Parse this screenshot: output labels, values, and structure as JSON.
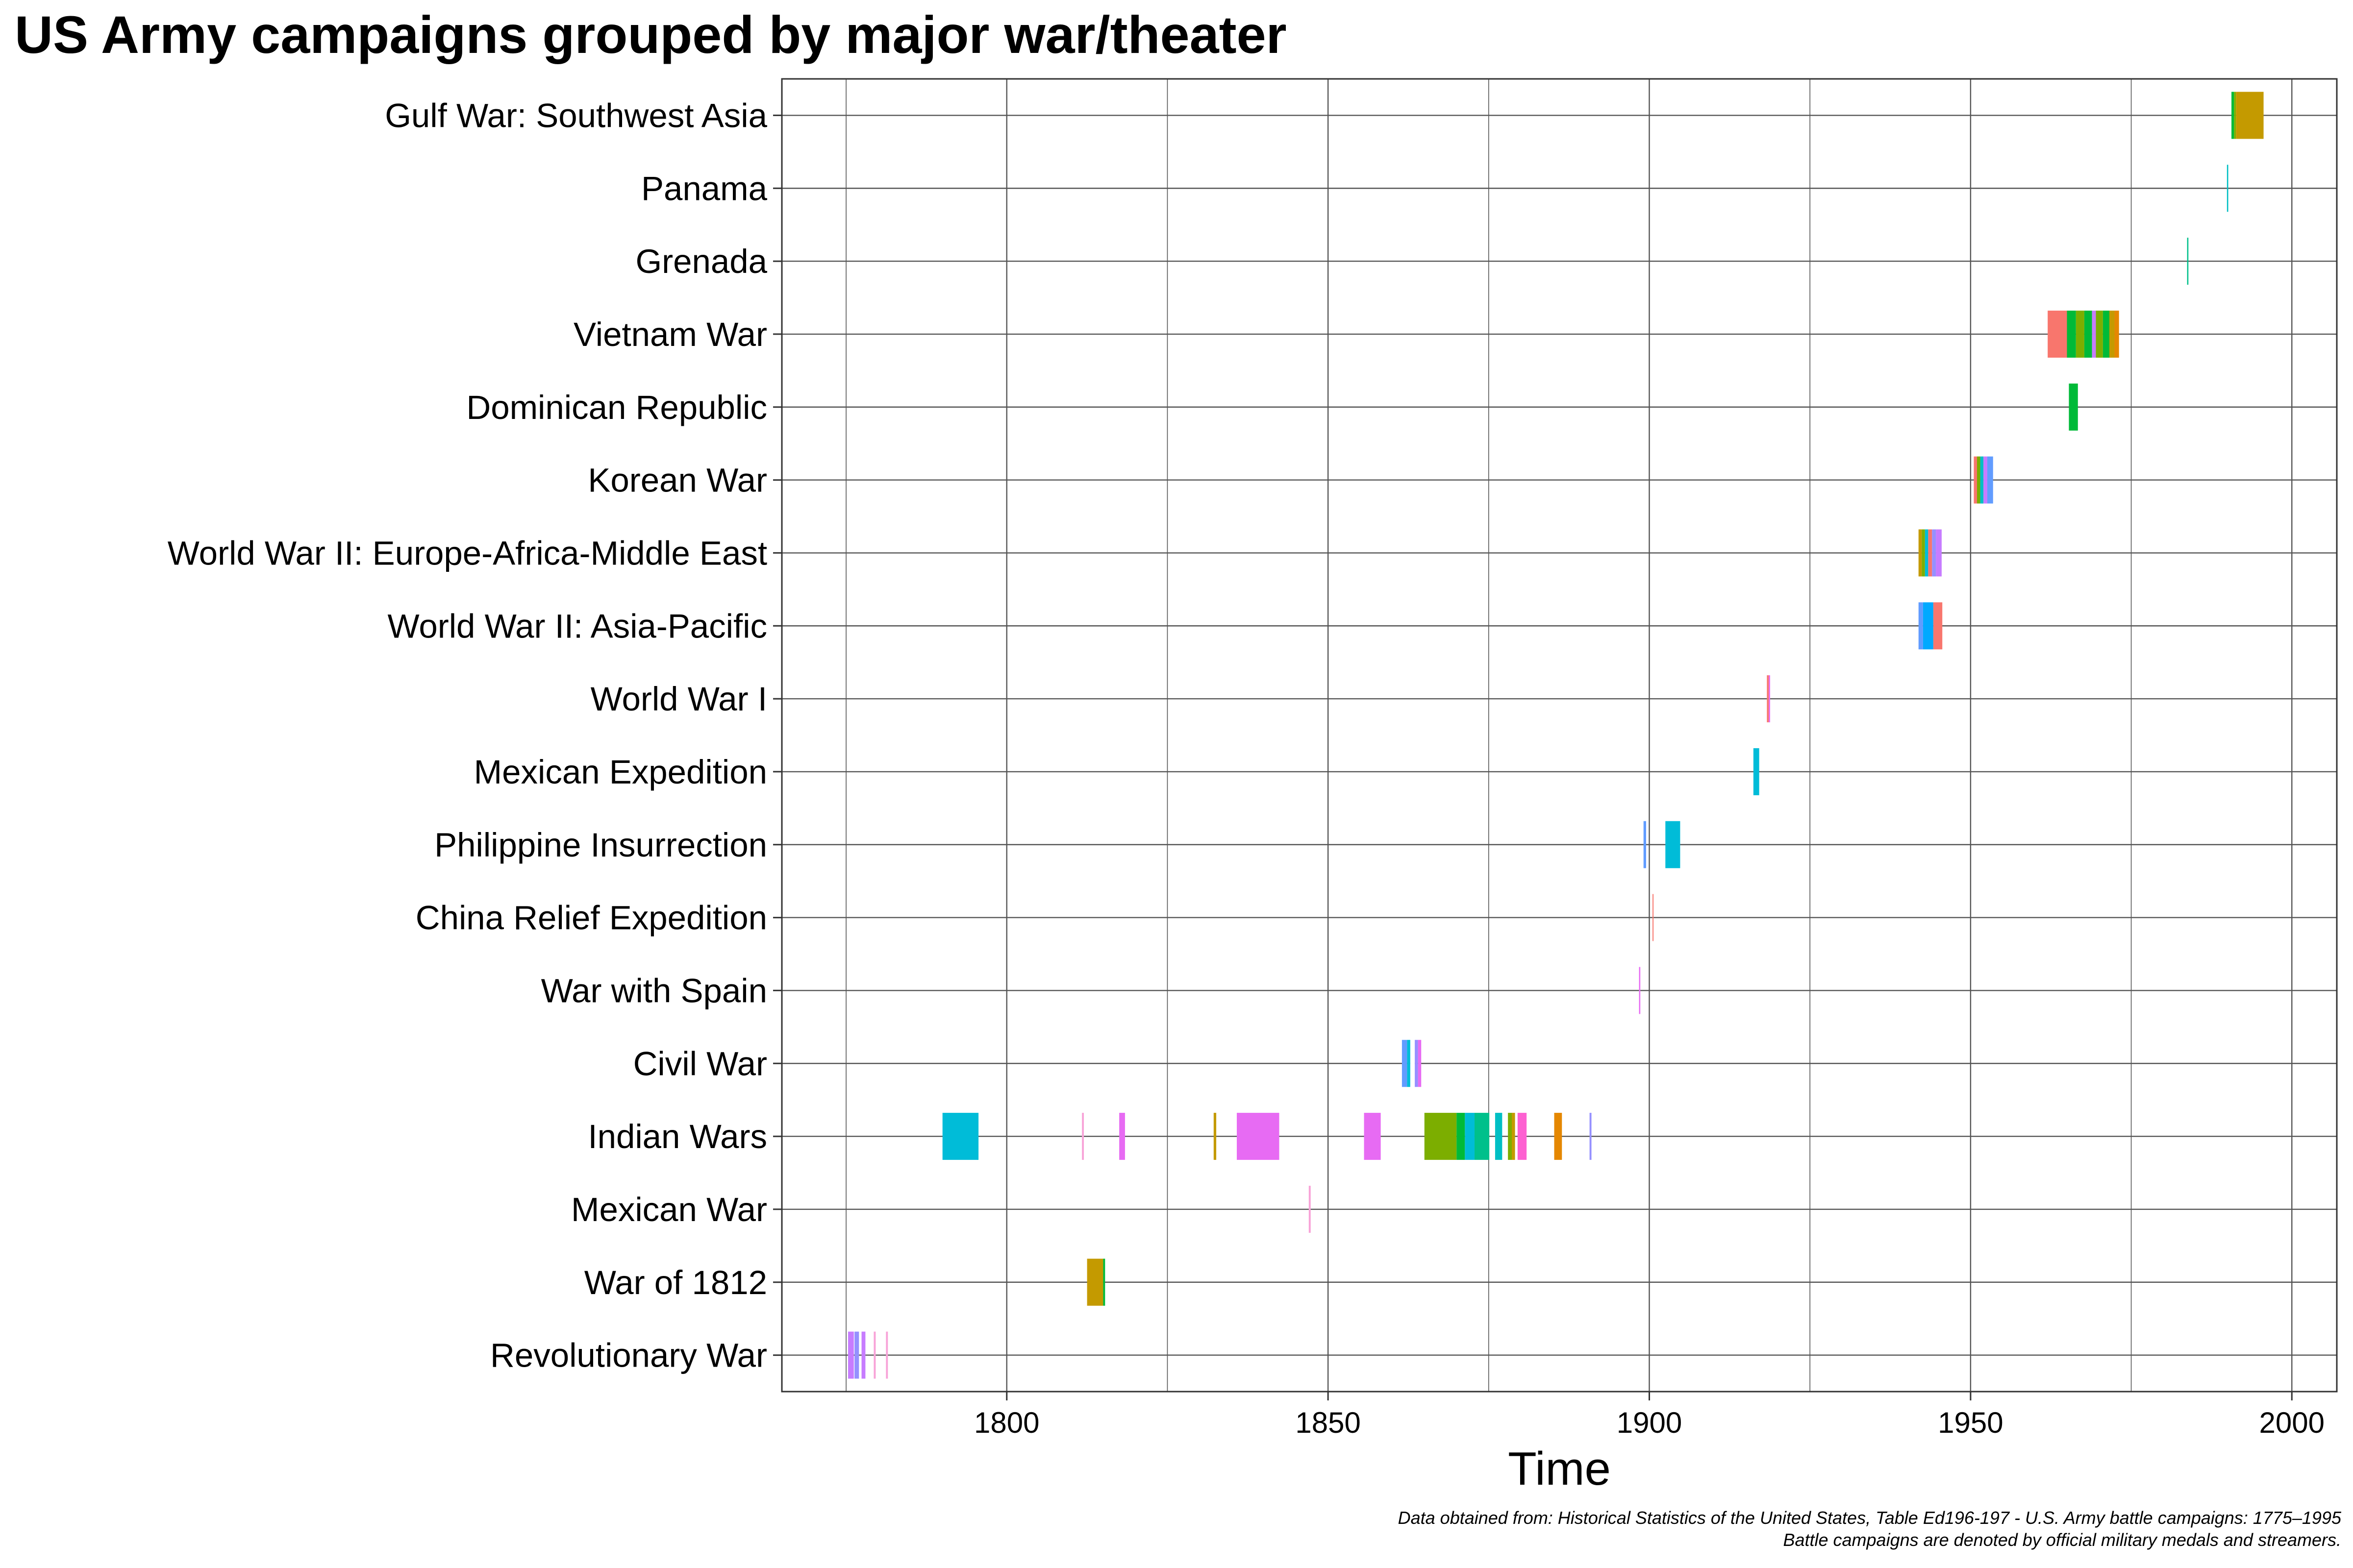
{
  "chart_data": {
    "type": "bar",
    "orientation": "horizontal-timeline",
    "title": "US Army campaigns grouped by major war/theater",
    "xlabel": "Time",
    "ylabel": "",
    "xlim": [
      1765,
      2007
    ],
    "xticks": [
      1800,
      1850,
      1900,
      1950,
      2000
    ],
    "grid": true,
    "legend": "none",
    "categories": [
      "Revolutionary War",
      "War of 1812",
      "Mexican War",
      "Indian Wars",
      "Civil War",
      "War with Spain",
      "China Relief Expedition",
      "Philippine Insurrection",
      "Mexican Expedition",
      "World War I",
      "World War II: Asia-Pacific",
      "World War II: Europe-Africa-Middle East",
      "Korean War",
      "Dominican Republic",
      "Vietnam War",
      "Grenada",
      "Panama",
      "Gulf War: Southwest Asia"
    ],
    "campaigns": [
      {
        "category": "Revolutionary War",
        "start": 1775.3,
        "end": 1776.2,
        "color": "#c77cff"
      },
      {
        "category": "Revolutionary War",
        "start": 1776.3,
        "end": 1777.0,
        "color": "#9590ff"
      },
      {
        "category": "Revolutionary War",
        "start": 1777.4,
        "end": 1778.0,
        "color": "#c77cff"
      },
      {
        "category": "Revolutionary War",
        "start": 1779.3,
        "end": 1779.6,
        "color": "#f8a3d8"
      },
      {
        "category": "Revolutionary War",
        "start": 1781.2,
        "end": 1781.5,
        "color": "#f8a3d8"
      },
      {
        "category": "War of 1812",
        "start": 1812.5,
        "end": 1815.0,
        "color": "#c49a00"
      },
      {
        "category": "War of 1812",
        "start": 1815.0,
        "end": 1815.3,
        "color": "#00ba38"
      },
      {
        "category": "Mexican War",
        "start": 1847.0,
        "end": 1847.3,
        "color": "#f8a3d8"
      },
      {
        "category": "Indian Wars",
        "start": 1790.0,
        "end": 1795.6,
        "color": "#00bcd8"
      },
      {
        "category": "Indian Wars",
        "start": 1811.7,
        "end": 1812.0,
        "color": "#f8a3d8"
      },
      {
        "category": "Indian Wars",
        "start": 1817.5,
        "end": 1818.4,
        "color": "#e76bf3"
      },
      {
        "category": "Indian Wars",
        "start": 1832.2,
        "end": 1832.6,
        "color": "#c49a00"
      },
      {
        "category": "Indian Wars",
        "start": 1835.8,
        "end": 1842.4,
        "color": "#e76bf3"
      },
      {
        "category": "Indian Wars",
        "start": 1855.6,
        "end": 1858.2,
        "color": "#e76bf3"
      },
      {
        "category": "Indian Wars",
        "start": 1865.0,
        "end": 1870.0,
        "color": "#7cae00"
      },
      {
        "category": "Indian Wars",
        "start": 1870.0,
        "end": 1871.3,
        "color": "#00ba38"
      },
      {
        "category": "Indian Wars",
        "start": 1871.3,
        "end": 1872.8,
        "color": "#00bcd8"
      },
      {
        "category": "Indian Wars",
        "start": 1872.8,
        "end": 1875.1,
        "color": "#00c08b"
      },
      {
        "category": "Indian Wars",
        "start": 1876.0,
        "end": 1877.1,
        "color": "#00bfc4"
      },
      {
        "category": "Indian Wars",
        "start": 1878.0,
        "end": 1878.6,
        "color": "#7cae00"
      },
      {
        "category": "Indian Wars",
        "start": 1878.6,
        "end": 1879.1,
        "color": "#c49a00"
      },
      {
        "category": "Indian Wars",
        "start": 1879.5,
        "end": 1880.9,
        "color": "#fd61d1"
      },
      {
        "category": "Indian Wars",
        "start": 1885.2,
        "end": 1886.4,
        "color": "#e58700"
      },
      {
        "category": "Indian Wars",
        "start": 1890.7,
        "end": 1891.0,
        "color": "#9590ff"
      },
      {
        "category": "Civil War",
        "start": 1861.5,
        "end": 1862.3,
        "color": "#619cff"
      },
      {
        "category": "Civil War",
        "start": 1862.3,
        "end": 1862.8,
        "color": "#00bcd8"
      },
      {
        "category": "Civil War",
        "start": 1862.8,
        "end": 1863.5,
        "color": "#ffffff"
      },
      {
        "category": "Civil War",
        "start": 1863.5,
        "end": 1864.0,
        "color": "#9590ff"
      },
      {
        "category": "Civil War",
        "start": 1864.0,
        "end": 1864.5,
        "color": "#e76bf3"
      },
      {
        "category": "War with Spain",
        "start": 1898.4,
        "end": 1898.6,
        "color": "#e76bf3"
      },
      {
        "category": "China Relief Expedition",
        "start": 1900.5,
        "end": 1900.6,
        "color": "#f8766d"
      },
      {
        "category": "Philippine Insurrection",
        "start": 1899.1,
        "end": 1899.5,
        "color": "#619cff"
      },
      {
        "category": "Philippine Insurrection",
        "start": 1902.5,
        "end": 1904.8,
        "color": "#00bcd8"
      },
      {
        "category": "Mexican Expedition",
        "start": 1916.2,
        "end": 1917.1,
        "color": "#00bcd8"
      },
      {
        "category": "World War I",
        "start": 1918.3,
        "end": 1918.6,
        "color": "#f8766d"
      },
      {
        "category": "World War I",
        "start": 1918.6,
        "end": 1918.8,
        "color": "#e76bf3"
      },
      {
        "category": "World War II: Asia-Pacific",
        "start": 1941.9,
        "end": 1942.6,
        "color": "#619cff"
      },
      {
        "category": "World War II: Asia-Pacific",
        "start": 1942.6,
        "end": 1944.2,
        "color": "#00a9ff"
      },
      {
        "category": "World War II: Asia-Pacific",
        "start": 1944.2,
        "end": 1945.6,
        "color": "#f8766d"
      },
      {
        "category": "World War II: Europe-Africa-Middle East",
        "start": 1941.9,
        "end": 1942.4,
        "color": "#c49a00"
      },
      {
        "category": "World War II: Europe-Africa-Middle East",
        "start": 1942.4,
        "end": 1942.9,
        "color": "#7cae00"
      },
      {
        "category": "World War II: Europe-Africa-Middle East",
        "start": 1942.9,
        "end": 1943.4,
        "color": "#00bcd8"
      },
      {
        "category": "World War II: Europe-Africa-Middle East",
        "start": 1943.4,
        "end": 1944.0,
        "color": "#f8766d"
      },
      {
        "category": "World War II: Europe-Africa-Middle East",
        "start": 1944.0,
        "end": 1944.6,
        "color": "#9590ff"
      },
      {
        "category": "World War II: Europe-Africa-Middle East",
        "start": 1944.6,
        "end": 1945.5,
        "color": "#c77cff"
      },
      {
        "category": "Korean War",
        "start": 1950.5,
        "end": 1951.0,
        "color": "#f8766d"
      },
      {
        "category": "Korean War",
        "start": 1951.0,
        "end": 1951.5,
        "color": "#7cae00"
      },
      {
        "category": "Korean War",
        "start": 1951.5,
        "end": 1952.0,
        "color": "#00bfc4"
      },
      {
        "category": "Korean War",
        "start": 1952.0,
        "end": 1952.6,
        "color": "#c77cff"
      },
      {
        "category": "Korean War",
        "start": 1952.6,
        "end": 1953.5,
        "color": "#619cff"
      },
      {
        "category": "Dominican Republic",
        "start": 1965.3,
        "end": 1966.7,
        "color": "#00ba38"
      },
      {
        "category": "Vietnam War",
        "start": 1962.0,
        "end": 1965.0,
        "color": "#f8766d"
      },
      {
        "category": "Vietnam War",
        "start": 1965.0,
        "end": 1966.4,
        "color": "#00ba38"
      },
      {
        "category": "Vietnam War",
        "start": 1966.4,
        "end": 1967.7,
        "color": "#7cae00"
      },
      {
        "category": "Vietnam War",
        "start": 1967.7,
        "end": 1968.9,
        "color": "#00ba38"
      },
      {
        "category": "Vietnam War",
        "start": 1968.9,
        "end": 1969.5,
        "color": "#c77cff"
      },
      {
        "category": "Vietnam War",
        "start": 1969.5,
        "end": 1970.6,
        "color": "#7cae00"
      },
      {
        "category": "Vietnam War",
        "start": 1970.6,
        "end": 1971.6,
        "color": "#00ba38"
      },
      {
        "category": "Vietnam War",
        "start": 1971.6,
        "end": 1972.4,
        "color": "#c49a00"
      },
      {
        "category": "Vietnam War",
        "start": 1972.4,
        "end": 1973.1,
        "color": "#e58700"
      },
      {
        "category": "Grenada",
        "start": 1983.7,
        "end": 1983.9,
        "color": "#00c08b"
      },
      {
        "category": "Panama",
        "start": 1989.9,
        "end": 1990.1,
        "color": "#00bfc4"
      },
      {
        "category": "Gulf War: Southwest Asia",
        "start": 1990.6,
        "end": 1991.0,
        "color": "#00ba38"
      },
      {
        "category": "Gulf War: Southwest Asia",
        "start": 1991.0,
        "end": 1991.3,
        "color": "#7cae00"
      },
      {
        "category": "Gulf War: Southwest Asia",
        "start": 1991.3,
        "end": 1995.6,
        "color": "#c49a00"
      }
    ],
    "caption": [
      "Data obtained from: Historical Statistics of the United States, Table Ed196-197 - U.S. Army battle campaigns: 1775–1995",
      "Battle campaigns are denoted by official military medals and streamers."
    ]
  }
}
